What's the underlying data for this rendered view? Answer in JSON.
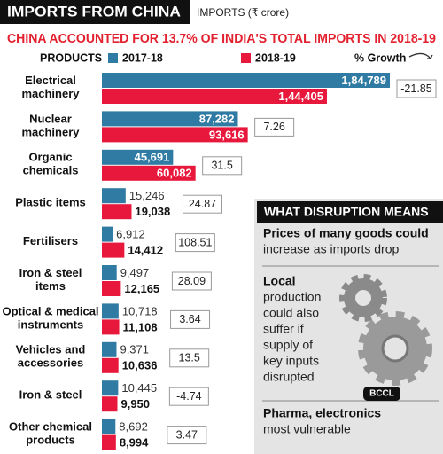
{
  "chart_data": {
    "type": "bar",
    "title": "IMPORTS FROM CHINA",
    "units": "IMPORTS (₹ crore)",
    "subtitle": "CHINA ACCOUNTED FOR 13.7% OF INDIA'S TOTAL IMPORTS IN 2018-19",
    "category_header": "PRODUCTS",
    "categories": [
      [
        "Electrical",
        "machinery"
      ],
      [
        "Nuclear",
        "machinery"
      ],
      [
        "Organic",
        "chemicals"
      ],
      [
        "Plastic items"
      ],
      [
        "Fertilisers"
      ],
      [
        "Iron & steel",
        "items"
      ],
      [
        "Optical & medical",
        "instruments"
      ],
      [
        "Vehicles and",
        "accessories"
      ],
      [
        "Iron & steel"
      ],
      [
        "Other chemical",
        "products"
      ]
    ],
    "series": [
      {
        "name": "2017-18",
        "color": "#2f7ba3",
        "values": [
          184789,
          87282,
          45691,
          15246,
          6912,
          9497,
          10718,
          9371,
          10445,
          8692
        ],
        "value_labels": [
          "1,84,789",
          "87,282",
          "45,691",
          "15,246",
          "6,912",
          "9,497",
          "10,718",
          "9,371",
          "10,445",
          "8,692"
        ]
      },
      {
        "name": "2018-19",
        "color": "#e8183c",
        "values": [
          144405,
          93616,
          60082,
          19038,
          14412,
          12165,
          11108,
          10636,
          9950,
          8994
        ],
        "value_labels": [
          "1,44,405",
          "93,616",
          "60,082",
          "19,038",
          "14,412",
          "12,165",
          "11,108",
          "10,636",
          "9,950",
          "8,994"
        ]
      }
    ],
    "growth": {
      "name": "% Growth",
      "values": [
        -21.85,
        7.26,
        31.5,
        24.87,
        108.51,
        28.09,
        3.64,
        13.5,
        -4.74,
        3.47
      ]
    }
  },
  "panel": {
    "title": "WHAT DISRUPTION MEANS",
    "items": [
      {
        "bold": [
          "Prices of many goods could"
        ],
        "text": [
          "increase as imports drop"
        ]
      },
      {
        "bold": [
          "Local"
        ],
        "text": [
          "production",
          "could also",
          "suffer if",
          "supply of",
          "key inputs",
          "disrupted"
        ]
      },
      {
        "bold": [
          "Pharma, electronics"
        ],
        "text": [
          "most vulnerable"
        ]
      }
    ],
    "badge": "BCCL"
  }
}
